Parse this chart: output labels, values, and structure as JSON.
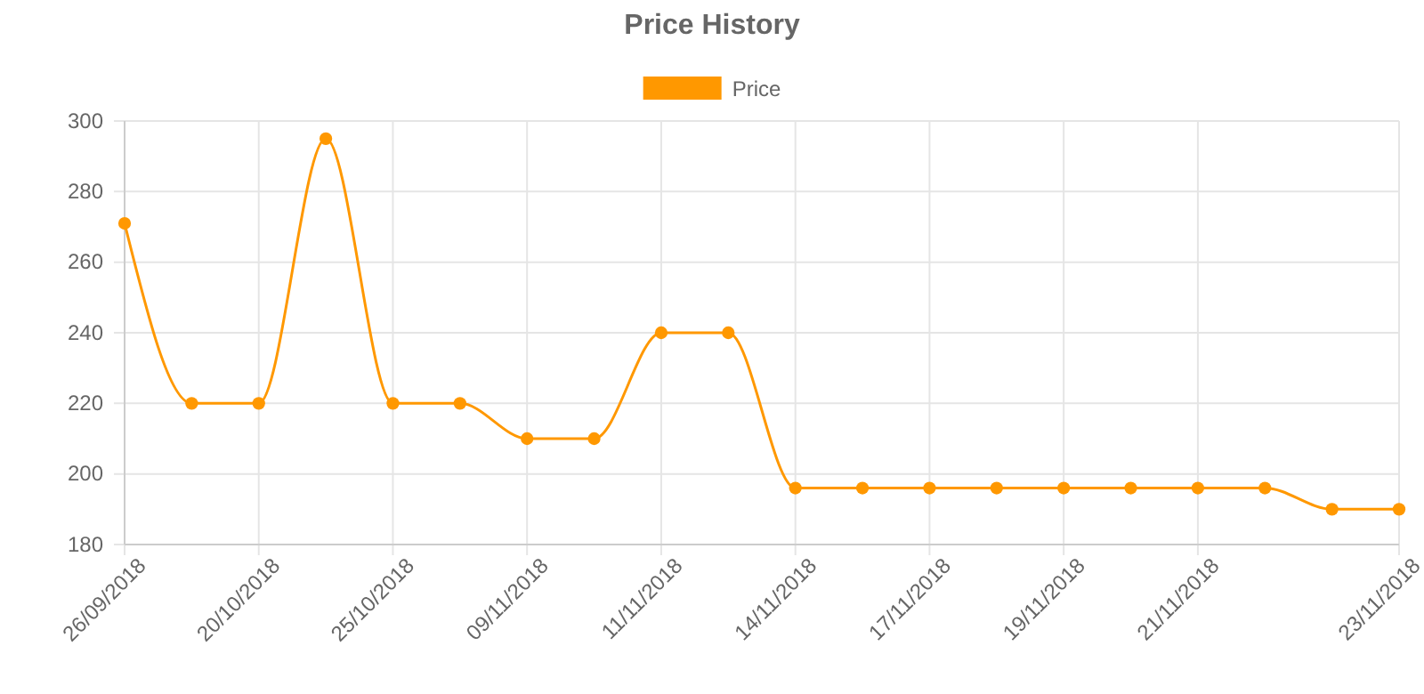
{
  "chart_data": {
    "type": "line",
    "title": "Price History",
    "categories": [
      "26/09/2018",
      null,
      "20/10/2018",
      null,
      "25/10/2018",
      null,
      "09/11/2018",
      null,
      "11/11/2018",
      null,
      "14/11/2018",
      null,
      "17/11/2018",
      null,
      "19/11/2018",
      null,
      "21/11/2018",
      null,
      null,
      "23/11/2018"
    ],
    "series": [
      {
        "name": "Price",
        "color": "#ff9800",
        "values": [
          271,
          220,
          220,
          295,
          220,
          220,
          210,
          210,
          240,
          240,
          196,
          196,
          196,
          196,
          196,
          196,
          196,
          196,
          190,
          190
        ]
      }
    ],
    "ylim": [
      180,
      300
    ],
    "yticks": [
      180,
      200,
      220,
      240,
      260,
      280,
      300
    ],
    "grid": true,
    "legend": "top",
    "marker": "circle",
    "line_style": "solid"
  }
}
